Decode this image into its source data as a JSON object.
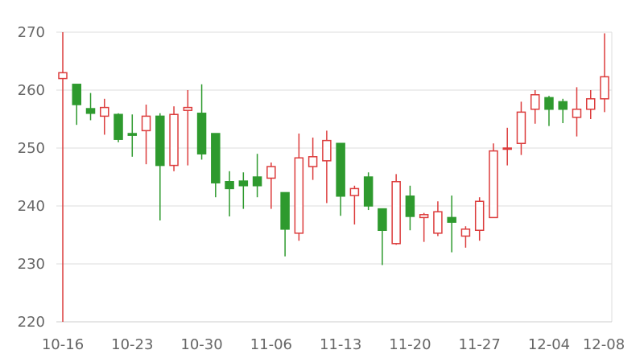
{
  "chart_data": {
    "type": "candlestick",
    "title": "",
    "xlabel": "",
    "ylabel": "",
    "ylim": [
      220,
      270
    ],
    "yticks": [
      220,
      230,
      240,
      250,
      260,
      270
    ],
    "grid": true,
    "legend": "none",
    "x_tick_labels": [
      "10-16",
      "10-23",
      "10-30",
      "11-06",
      "11-13",
      "11-20",
      "11-27",
      "12-04",
      "12-08"
    ],
    "colors": {
      "up": "#dc3c3c",
      "down": "#2e9a2e",
      "grid": "#dddddd",
      "axis": "#cccccc",
      "text": "#666666"
    },
    "candles": [
      {
        "date": "10-16",
        "open": 262.0,
        "close": 263.0,
        "high": 270.0,
        "low": 220.0
      },
      {
        "date": "10-17",
        "open": 261.0,
        "close": 257.5,
        "high": 261.0,
        "low": 254.0
      },
      {
        "date": "10-18",
        "open": 256.8,
        "close": 256.0,
        "high": 259.5,
        "low": 254.8
      },
      {
        "date": "10-19",
        "open": 255.5,
        "close": 257.0,
        "high": 258.5,
        "low": 252.3
      },
      {
        "date": "10-20",
        "open": 255.8,
        "close": 251.5,
        "high": 256.0,
        "low": 251.0
      },
      {
        "date": "10-23",
        "open": 252.5,
        "close": 252.2,
        "high": 255.8,
        "low": 248.5
      },
      {
        "date": "10-24",
        "open": 253.0,
        "close": 255.5,
        "high": 257.5,
        "low": 247.2
      },
      {
        "date": "10-25",
        "open": 255.5,
        "close": 247.0,
        "high": 256.0,
        "low": 237.5
      },
      {
        "date": "10-26",
        "open": 247.0,
        "close": 255.8,
        "high": 257.2,
        "low": 246.0
      },
      {
        "date": "10-27",
        "open": 256.5,
        "close": 257.0,
        "high": 260.0,
        "low": 247.0
      },
      {
        "date": "10-30",
        "open": 256.0,
        "close": 249.0,
        "high": 261.0,
        "low": 248.0
      },
      {
        "date": "10-31",
        "open": 252.5,
        "close": 244.0,
        "high": 252.5,
        "low": 241.5
      },
      {
        "date": "11-01",
        "open": 244.2,
        "close": 243.0,
        "high": 246.0,
        "low": 238.2
      },
      {
        "date": "11-02",
        "open": 244.3,
        "close": 243.5,
        "high": 245.8,
        "low": 239.5
      },
      {
        "date": "11-03",
        "open": 245.0,
        "close": 243.5,
        "high": 249.0,
        "low": 241.5
      },
      {
        "date": "11-06",
        "open": 244.8,
        "close": 246.8,
        "high": 247.5,
        "low": 239.5
      },
      {
        "date": "11-07",
        "open": 242.3,
        "close": 236.0,
        "high": 242.3,
        "low": 231.3
      },
      {
        "date": "11-08",
        "open": 235.3,
        "close": 248.3,
        "high": 252.5,
        "low": 234.0
      },
      {
        "date": "11-09",
        "open": 246.8,
        "close": 248.5,
        "high": 251.8,
        "low": 244.5
      },
      {
        "date": "11-10",
        "open": 247.8,
        "close": 251.3,
        "high": 253.0,
        "low": 240.5
      },
      {
        "date": "11-13",
        "open": 250.8,
        "close": 241.7,
        "high": 250.8,
        "low": 238.3
      },
      {
        "date": "11-14",
        "open": 241.8,
        "close": 243.0,
        "high": 243.5,
        "low": 236.8
      },
      {
        "date": "11-15",
        "open": 245.0,
        "close": 240.0,
        "high": 245.8,
        "low": 239.3
      },
      {
        "date": "11-16",
        "open": 239.5,
        "close": 235.8,
        "high": 239.5,
        "low": 229.8
      },
      {
        "date": "11-17",
        "open": 233.5,
        "close": 244.2,
        "high": 245.5,
        "low": 233.3
      },
      {
        "date": "11-20",
        "open": 241.7,
        "close": 238.2,
        "high": 243.5,
        "low": 235.8
      },
      {
        "date": "11-21",
        "open": 238.0,
        "close": 238.5,
        "high": 238.8,
        "low": 233.8
      },
      {
        "date": "11-22",
        "open": 235.3,
        "close": 239.0,
        "high": 240.8,
        "low": 234.8
      },
      {
        "date": "11-23",
        "open": 238.0,
        "close": 237.2,
        "high": 241.8,
        "low": 232.0
      },
      {
        "date": "11-24",
        "open": 234.8,
        "close": 236.0,
        "high": 236.5,
        "low": 232.8
      },
      {
        "date": "11-27",
        "open": 235.8,
        "close": 240.8,
        "high": 241.5,
        "low": 234.0
      },
      {
        "date": "11-28",
        "open": 238.0,
        "close": 249.5,
        "high": 250.8,
        "low": 238.0
      },
      {
        "date": "11-29",
        "open": 249.8,
        "close": 250.0,
        "high": 253.5,
        "low": 247.0
      },
      {
        "date": "11-30",
        "open": 250.8,
        "close": 256.2,
        "high": 258.0,
        "low": 248.8
      },
      {
        "date": "12-01",
        "open": 256.7,
        "close": 259.2,
        "high": 260.0,
        "low": 254.2
      },
      {
        "date": "12-04",
        "open": 258.7,
        "close": 256.7,
        "high": 259.0,
        "low": 253.8
      },
      {
        "date": "12-05",
        "open": 258.0,
        "close": 256.7,
        "high": 258.5,
        "low": 254.3
      },
      {
        "date": "12-06",
        "open": 255.3,
        "close": 256.7,
        "high": 260.5,
        "low": 252.0
      },
      {
        "date": "12-07",
        "open": 256.7,
        "close": 258.5,
        "high": 260.0,
        "low": 255.0
      },
      {
        "date": "12-08",
        "open": 258.5,
        "close": 262.3,
        "high": 269.8,
        "low": 256.2
      }
    ]
  }
}
